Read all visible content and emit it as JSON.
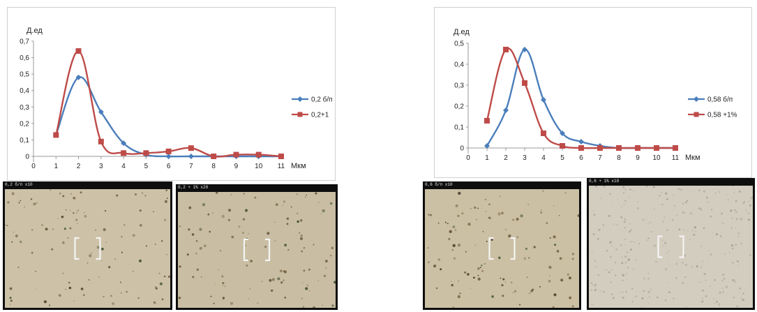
{
  "chart_data": [
    {
      "type": "line",
      "title": "",
      "ylabel": "Д.ед",
      "xlabel": "Мкм",
      "x": [
        1,
        2,
        3,
        4,
        5,
        6,
        7,
        8,
        9,
        10,
        11
      ],
      "xticks": [
        "0",
        "1",
        "2",
        "3",
        "4",
        "5",
        "6",
        "7",
        "8",
        "9",
        "10",
        "11"
      ],
      "yticks": [
        "0",
        "0,1",
        "0,2",
        "0,3",
        "0,4",
        "0,5",
        "0,6",
        "0,7"
      ],
      "xlim": [
        0,
        11
      ],
      "ylim": [
        0,
        0.7
      ],
      "grid": false,
      "legend_position": "right",
      "series": [
        {
          "name": "0,2 б/п",
          "color": "#4a7ebb",
          "marker": "diamond",
          "values": [
            0.13,
            0.48,
            0.27,
            0.08,
            0.01,
            0.0,
            0.0,
            0.0,
            0.0,
            0.0,
            0.0
          ]
        },
        {
          "name": "0,2+1",
          "color": "#be4b48",
          "marker": "square",
          "values": [
            0.13,
            0.64,
            0.09,
            0.02,
            0.02,
            0.03,
            0.05,
            0.0,
            0.01,
            0.01,
            0.0
          ]
        }
      ]
    },
    {
      "type": "line",
      "title": "",
      "ylabel": "Д.ед",
      "xlabel": "Мкм",
      "x": [
        1,
        2,
        3,
        4,
        5,
        6,
        7,
        8,
        9,
        10,
        11
      ],
      "xticks": [
        "0",
        "1",
        "2",
        "3",
        "4",
        "5",
        "6",
        "7",
        "8",
        "9",
        "10",
        "11"
      ],
      "yticks": [
        "0",
        "0,1",
        "0,2",
        "0,3",
        "0,4",
        "0,5"
      ],
      "xlim": [
        0,
        11
      ],
      "ylim": [
        0,
        0.5
      ],
      "grid": false,
      "legend_position": "right",
      "series": [
        {
          "name": "0,58 б/п",
          "color": "#4a7ebb",
          "marker": "diamond",
          "values": [
            0.01,
            0.18,
            0.47,
            0.23,
            0.07,
            0.03,
            0.01,
            0.0,
            0.0,
            0.0,
            0.0
          ]
        },
        {
          "name": "0,58 +1%",
          "color": "#be4b48",
          "marker": "square",
          "values": [
            0.13,
            0.47,
            0.31,
            0.07,
            0.01,
            0.0,
            0.0,
            0.0,
            0.0,
            0.0,
            0.0
          ]
        }
      ]
    }
  ],
  "micrographs": [
    {
      "caption": "0,2 б/п x10",
      "background": "#cdc2a8"
    },
    {
      "caption": "0,2 + 1% x20",
      "background": "#c9bea3"
    },
    {
      "caption": "0,6 б/п x10",
      "background": "#cbc0a4"
    },
    {
      "caption": "0,6 + 1% x10",
      "background": "#d3cdbf"
    }
  ]
}
